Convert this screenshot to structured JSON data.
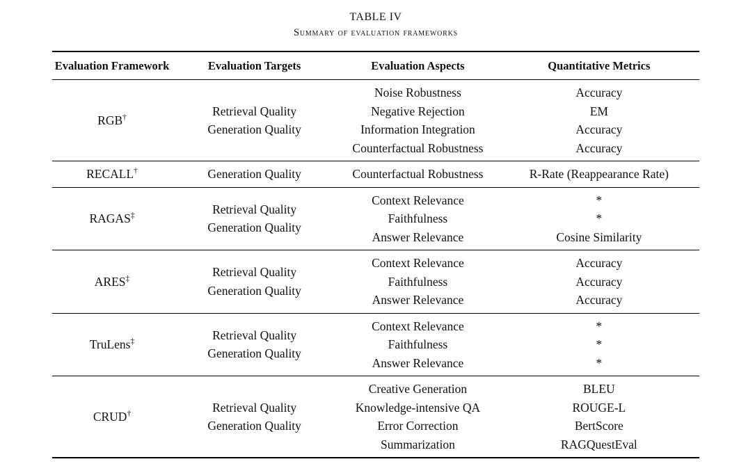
{
  "caption": {
    "number": "TABLE IV",
    "title": "Summary of evaluation frameworks"
  },
  "colors": {
    "text": "#111111",
    "background": "#ffffff",
    "rule": "#000000"
  },
  "table": {
    "columns": [
      "Evaluation Framework",
      "Evaluation Targets",
      "Evaluation Aspects",
      "Quantitative Metrics"
    ],
    "rows": [
      {
        "framework": "RGB",
        "framework_mark": "†",
        "targets": [
          "Retrieval Quality",
          "Generation Quality"
        ],
        "aspects": [
          "Noise Robustness",
          "Negative Rejection",
          "Information Integration",
          "Counterfactual Robustness"
        ],
        "metrics": [
          "Accuracy",
          "EM",
          "Accuracy",
          "Accuracy"
        ]
      },
      {
        "framework": "RECALL",
        "framework_mark": "†",
        "targets": [
          "Generation Quality"
        ],
        "aspects": [
          "Counterfactual Robustness"
        ],
        "metrics": [
          "R-Rate (Reappearance Rate)"
        ]
      },
      {
        "framework": "RAGAS",
        "framework_mark": "‡",
        "targets": [
          "Retrieval Quality",
          "Generation Quality"
        ],
        "aspects": [
          "Context Relevance",
          "Faithfulness",
          "Answer Relevance"
        ],
        "metrics": [
          "*",
          "*",
          "Cosine Similarity"
        ]
      },
      {
        "framework": "ARES",
        "framework_mark": "‡",
        "targets": [
          "Retrieval Quality",
          "Generation Quality"
        ],
        "aspects": [
          "Context Relevance",
          "Faithfulness",
          "Answer Relevance"
        ],
        "metrics": [
          "Accuracy",
          "Accuracy",
          "Accuracy"
        ]
      },
      {
        "framework": "TruLens",
        "framework_mark": "‡",
        "targets": [
          "Retrieval Quality",
          "Generation Quality"
        ],
        "aspects": [
          "Context Relevance",
          "Faithfulness",
          "Answer Relevance"
        ],
        "metrics": [
          "*",
          "*",
          "*"
        ]
      },
      {
        "framework": "CRUD",
        "framework_mark": "†",
        "targets": [
          "Retrieval Quality",
          "Generation Quality"
        ],
        "aspects": [
          "Creative Generation",
          "Knowledge-intensive QA",
          "Error Correction",
          "Summarization"
        ],
        "metrics": [
          "BLEU",
          "ROUGE-L",
          "BertScore",
          "RAGQuestEval"
        ]
      }
    ]
  }
}
